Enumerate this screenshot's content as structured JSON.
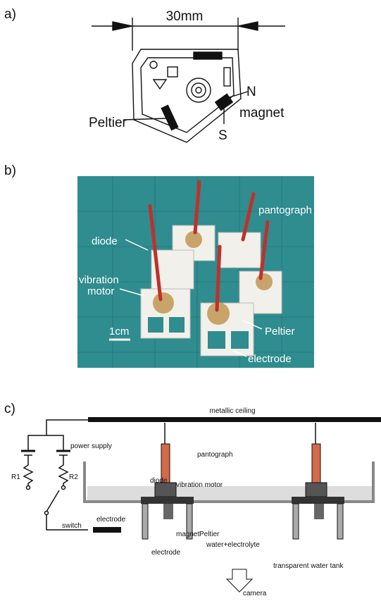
{
  "panels": {
    "a": {
      "label": "a)",
      "dimension": "30mm",
      "north": "N",
      "magnet": "magnet",
      "peltier": "Peltier",
      "south": "S"
    },
    "b": {
      "label": "b)",
      "pantograph": "pantograph",
      "diode": "diode",
      "vibration_motor": [
        "vibration",
        "motor"
      ],
      "scale": "1cm",
      "peltier": "Peltier",
      "electrode": "electrode"
    },
    "c": {
      "label": "c)",
      "ceiling": "metallic ceiling",
      "power_supply": "power supply",
      "pantograph": "pantograph",
      "diode": "diode",
      "vibration_motor": "vibration motor",
      "r1": "R1",
      "r2": "R2",
      "switch": "switch",
      "electrode_left": "electrode",
      "magnet": "magnet",
      "peltier": "Peltier",
      "water": "water+electrolyte",
      "electrode": "electrode",
      "tank": "transparent water tank",
      "camera": "camera"
    }
  }
}
